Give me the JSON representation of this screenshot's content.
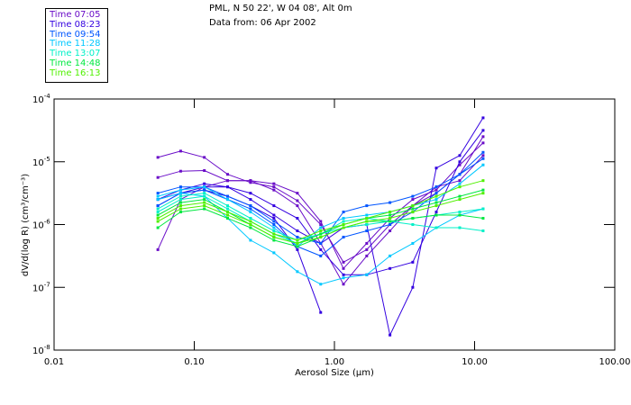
{
  "header": {
    "line1": "PML, N 50 22', W 04 08', Alt 0m",
    "line2": "Data from: 06 Apr 2002"
  },
  "chart_data": {
    "type": "line",
    "title": "PML, N 50 22', W 04 08', Alt 0m",
    "xlabel": "Aerosol Size (µm)",
    "ylabel": "dV/d(log R) (cm³/cm⁻³)",
    "xscale": "log",
    "yscale": "log",
    "xlim": [
      0.01,
      100
    ],
    "ylim": [
      1e-08,
      0.0001
    ],
    "x_tick_labels": [
      "0.01",
      "0.10",
      "1.00",
      "10.00",
      "100.00"
    ],
    "x_ticks": [
      0.01,
      0.1,
      1,
      10,
      100
    ],
    "y_tick_labels": [
      {
        "base": "10",
        "exp": "-4"
      },
      {
        "base": "10",
        "exp": "-5"
      },
      {
        "base": "10",
        "exp": "-6"
      },
      {
        "base": "10",
        "exp": "-7"
      },
      {
        "base": "10",
        "exp": "-8"
      }
    ],
    "y_ticks_log10": [
      -4,
      -5,
      -6,
      -7,
      -8
    ],
    "legend_position": "top-left, outside plot",
    "legend": [
      {
        "label": "Time 07:05",
        "color": "#6a0dc8"
      },
      {
        "label": "Time 08:23",
        "color": "#3300e0"
      },
      {
        "label": "Time 09:54",
        "color": "#0055ff"
      },
      {
        "label": "Time 11:28",
        "color": "#00c8ff"
      },
      {
        "label": "Time 13:07",
        "color": "#00f0c8"
      },
      {
        "label": "Time 14:48",
        "color": "#00e840"
      },
      {
        "label": "Time 16:13",
        "color": "#50f000"
      }
    ],
    "x": [
      0.055,
      0.08,
      0.118,
      0.173,
      0.252,
      0.37,
      0.544,
      0.798,
      1.16,
      1.7,
      2.49,
      3.62,
      5.33,
      7.83,
      11.5
    ],
    "series": [
      {
        "time": "07:05",
        "color": "#6a0dc8",
        "log10_values": [
          -4.93,
          -4.83,
          -4.93,
          -5.2,
          -5.33,
          -5.4,
          -5.62,
          -6.0,
          -6.6,
          -6.4,
          -6.0,
          -5.7,
          -5.5,
          -5.2,
          -4.6
        ]
      },
      {
        "time": "07:05",
        "color": "#6a0dc8",
        "log10_values": [
          -5.25,
          -5.15,
          -5.14,
          -5.3,
          -5.3,
          -5.35,
          -5.5,
          -5.95,
          -6.7,
          -6.3,
          -5.9,
          -5.6,
          -5.45,
          -5.05,
          -4.7
        ]
      },
      {
        "time": "07:05",
        "color": "#6a0dc8",
        "log10_values": [
          -6.4,
          -5.6,
          -5.4,
          -5.3,
          -5.3,
          -5.45,
          -5.7,
          -6.3,
          -6.95,
          -6.5,
          -6.1,
          -5.7,
          -5.4,
          -5.3,
          -4.9
        ]
      },
      {
        "time": "08:23",
        "color": "#3300e0",
        "log10_values": [
          -5.6,
          -5.45,
          -5.35,
          -5.4,
          -5.5,
          -5.7,
          -5.9,
          -6.4,
          -6.8,
          -6.8,
          -6.7,
          -6.6,
          -5.8,
          -5.0,
          -4.5
        ]
      },
      {
        "time": "08:23",
        "color": "#3300e0",
        "log10_values": [
          -5.7,
          -5.5,
          -5.4,
          -5.4,
          -5.6,
          -5.85,
          -6.1,
          -6.3,
          -6.05,
          -6.0,
          -7.76,
          -7.0,
          -5.1,
          -4.9,
          -4.3
        ]
      },
      {
        "time": "08:23",
        "color": "#3300e0",
        "log10_values": [
          -5.6,
          -5.5,
          -5.45,
          -5.55,
          -5.7,
          -5.9,
          -6.4,
          -7.4,
          null,
          null,
          null,
          null,
          null,
          null,
          null
        ]
      },
      {
        "time": "09:54",
        "color": "#0055ff",
        "log10_values": [
          -5.5,
          -5.4,
          -5.4,
          -5.55,
          -5.7,
          -5.95,
          -6.2,
          -6.3,
          -5.8,
          -5.7,
          -5.65,
          -5.55,
          -5.4,
          -5.2,
          -4.95
        ]
      },
      {
        "time": "09:54",
        "color": "#0055ff",
        "log10_values": [
          -5.7,
          -5.5,
          -5.45,
          -5.6,
          -5.75,
          -6.0,
          -6.35,
          -6.5,
          -6.2,
          -6.1,
          -6.0,
          -5.8,
          -5.5,
          -5.2,
          -4.85
        ]
      },
      {
        "time": "11:28",
        "color": "#00c8ff",
        "log10_values": [
          -5.55,
          -5.45,
          -5.4,
          -5.6,
          -5.8,
          -6.05,
          -6.35,
          -6.05,
          -5.9,
          -5.85,
          -5.8,
          -5.7,
          -5.6,
          -5.35,
          -5.05
        ]
      },
      {
        "time": "11:28",
        "color": "#00c8ff",
        "log10_values": [
          -5.6,
          -5.5,
          -5.55,
          -5.9,
          -6.25,
          -6.45,
          -6.75,
          -6.95,
          -6.85,
          -6.8,
          -6.5,
          -6.3,
          -6.05,
          -5.85,
          -5.75
        ]
      },
      {
        "time": "13:07",
        "color": "#00f0c8",
        "log10_values": [
          -5.8,
          -5.6,
          -5.55,
          -5.75,
          -5.95,
          -6.15,
          -6.3,
          -6.15,
          -5.95,
          -5.9,
          -5.95,
          -6.0,
          -6.05,
          -6.05,
          -6.1
        ]
      },
      {
        "time": "13:07",
        "color": "#00f0c8",
        "log10_values": [
          -5.75,
          -5.55,
          -5.5,
          -5.7,
          -5.9,
          -6.1,
          -6.25,
          -6.15,
          -6.05,
          -6.0,
          -5.95,
          -5.9,
          -5.85,
          -5.8,
          -5.75
        ]
      },
      {
        "time": "14:48",
        "color": "#00e840",
        "log10_values": [
          -5.85,
          -5.65,
          -5.6,
          -5.8,
          -6.0,
          -6.2,
          -6.3,
          -6.15,
          -6.0,
          -5.9,
          -5.85,
          -5.75,
          -5.65,
          -5.55,
          -5.45
        ]
      },
      {
        "time": "14:48",
        "color": "#00e840",
        "log10_values": [
          -6.05,
          -5.8,
          -5.75,
          -5.9,
          -6.05,
          -6.25,
          -6.35,
          -6.2,
          -6.05,
          -5.95,
          -5.95,
          -5.9,
          -5.85,
          -5.85,
          -5.9
        ]
      },
      {
        "time": "16:13",
        "color": "#50f000",
        "log10_values": [
          -5.95,
          -5.75,
          -5.7,
          -5.85,
          -6.0,
          -6.2,
          -6.3,
          -6.2,
          -6.05,
          -5.95,
          -5.9,
          -5.8,
          -5.7,
          -5.6,
          -5.5
        ]
      },
      {
        "time": "16:13",
        "color": "#50f000",
        "log10_values": [
          -5.9,
          -5.7,
          -5.65,
          -5.8,
          -5.95,
          -6.15,
          -6.25,
          -6.1,
          -6.0,
          -5.9,
          -5.8,
          -5.7,
          -5.55,
          -5.4,
          -5.3
        ]
      }
    ]
  }
}
